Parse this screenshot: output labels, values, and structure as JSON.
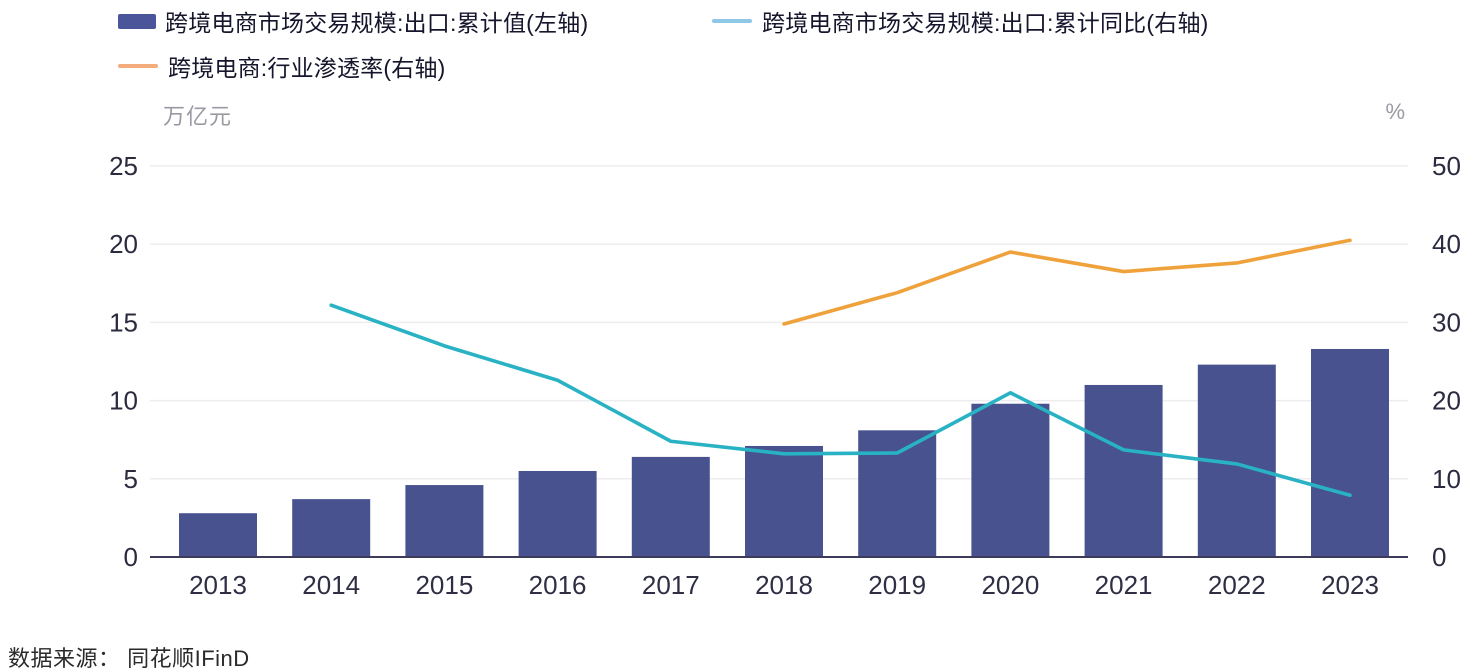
{
  "legend": {
    "items": [
      {
        "label": "跨境电商市场交易规模:出口:累计值(左轴)",
        "marker": "bar",
        "color": "#4A5699"
      },
      {
        "label": "跨境电商市场交易规模:出口:累计同比(右轴)",
        "marker": "line",
        "color": "#8FC7E6"
      },
      {
        "label": "跨境电商:行业渗透率(右轴)",
        "marker": "line",
        "color": "#F4AC7C"
      }
    ]
  },
  "source": {
    "text": "数据来源： 同花顺IFinD"
  },
  "chart_data": {
    "type": "bar",
    "subtype": "bar+line combo, dual axis",
    "categories": [
      "2013",
      "2014",
      "2015",
      "2016",
      "2017",
      "2018",
      "2019",
      "2020",
      "2021",
      "2022",
      "2023"
    ],
    "series": [
      {
        "name": "跨境电商市场交易规模:出口:累计值(左轴)",
        "type": "bar",
        "axis": "left",
        "unit": "万亿元",
        "color": "#47528F",
        "values": [
          2.8,
          3.7,
          4.6,
          5.5,
          6.4,
          7.1,
          8.1,
          9.8,
          11.0,
          12.3,
          13.3
        ]
      },
      {
        "name": "跨境电商市场交易规模:出口:累计同比(右轴)",
        "type": "line",
        "axis": "right",
        "unit": "%",
        "color": "#29B2C4",
        "values": [
          null,
          32.2,
          27.0,
          22.6,
          14.8,
          13.2,
          13.3,
          21.0,
          13.7,
          11.9,
          7.9
        ]
      },
      {
        "name": "跨境电商:行业渗透率(右轴)",
        "type": "line",
        "axis": "right",
        "unit": "%",
        "color": "#EFA23B",
        "values": [
          null,
          null,
          null,
          null,
          null,
          29.8,
          33.8,
          39.0,
          36.5,
          37.6,
          40.5
        ]
      }
    ],
    "left_axis": {
      "unit": "万亿元",
      "ticks": [
        25,
        20,
        15,
        10,
        5,
        0
      ],
      "range": [
        0,
        25
      ]
    },
    "right_axis": {
      "unit": "%",
      "ticks": [
        50,
        40,
        30,
        20,
        10,
        0
      ],
      "range": [
        0,
        50
      ]
    },
    "grid": "horizontal gridlines on",
    "legend_position": "top-left",
    "colors": {
      "gridline": "#EDEDF0",
      "baseline": "#3C3C5A",
      "tick_label": "#2B2B40",
      "x_label": "#2E2E44"
    }
  }
}
